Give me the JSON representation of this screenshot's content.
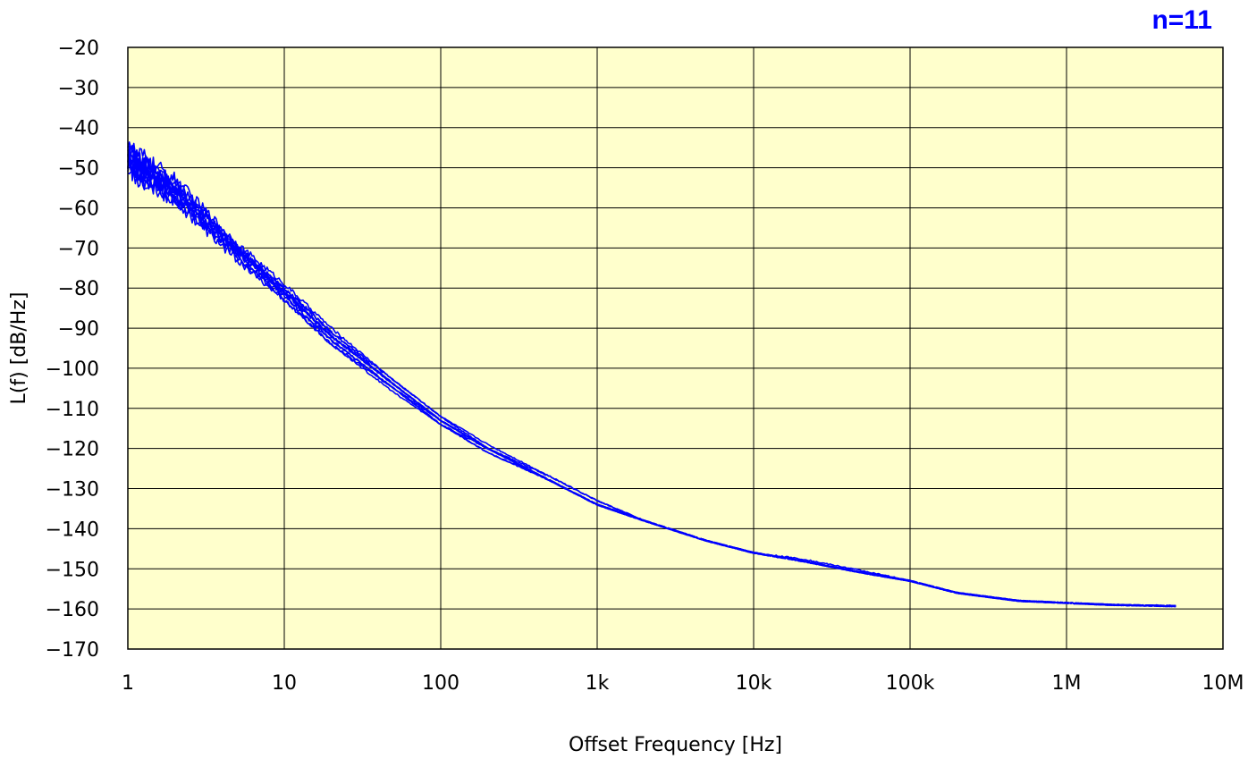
{
  "chart_data": {
    "type": "line",
    "annotation": "n=11",
    "xlabel": "Offset Frequency [Hz]",
    "ylabel": "L(f) [dB/Hz]",
    "x_scale": "log",
    "xlim": [
      1,
      10000000
    ],
    "ylim": [
      -170,
      -20
    ],
    "x_ticks": [
      {
        "value": 1,
        "label": "1"
      },
      {
        "value": 10,
        "label": "10"
      },
      {
        "value": 100,
        "label": "100"
      },
      {
        "value": 1000,
        "label": "1k"
      },
      {
        "value": 10000,
        "label": "10k"
      },
      {
        "value": 100000,
        "label": "100k"
      },
      {
        "value": 1000000,
        "label": "1M"
      },
      {
        "value": 10000000,
        "label": "10M"
      }
    ],
    "y_ticks": [
      -20,
      -30,
      -40,
      -50,
      -60,
      -70,
      -80,
      -90,
      -100,
      -110,
      -120,
      -130,
      -140,
      -150,
      -160,
      -170
    ],
    "grid": true,
    "series_count": 11,
    "series_color": "#0000ff",
    "plot_background": "#ffffcc",
    "x": [
      1,
      2,
      3,
      5,
      10,
      20,
      50,
      100,
      200,
      500,
      1000,
      2000,
      5000,
      10000,
      20000,
      50000,
      100000,
      200000,
      500000,
      1000000,
      2000000,
      5000000
    ],
    "series": [
      {
        "values": [
          -47,
          -55,
          -62,
          -70,
          -81,
          -92,
          -104,
          -113,
          -120,
          -128,
          -134,
          -138,
          -143,
          -146,
          -148,
          -151,
          -153,
          -156,
          -158,
          -158.5,
          -159,
          -159.3
        ]
      },
      {
        "values": [
          -45,
          -53,
          -60,
          -69,
          -79,
          -90,
          -103,
          -112,
          -119,
          -127,
          -133,
          -138,
          -143,
          -146,
          -147.5,
          -150.5,
          -153,
          -156,
          -158,
          -158.5,
          -159,
          -159.2
        ]
      },
      {
        "values": [
          -49,
          -57,
          -63,
          -71,
          -82,
          -93,
          -105,
          -114,
          -120,
          -128,
          -134,
          -138,
          -143,
          -146,
          -148,
          -151,
          -153,
          -156,
          -158,
          -158.5,
          -159,
          -159.3
        ]
      },
      {
        "values": [
          -46,
          -54,
          -61,
          -70,
          -80,
          -91,
          -104,
          -113,
          -120,
          -128,
          -134,
          -138,
          -143,
          -146,
          -148,
          -151,
          -153,
          -156,
          -158,
          -158.5,
          -159,
          -159.3
        ]
      },
      {
        "values": [
          -50,
          -58,
          -64,
          -72,
          -83,
          -94,
          -105,
          -114,
          -121,
          -128,
          -134,
          -138,
          -143,
          -146,
          -148,
          -151,
          -153,
          -156,
          -158,
          -158.5,
          -159,
          -159.3
        ]
      },
      {
        "values": [
          -48,
          -56,
          -62,
          -71,
          -81,
          -92,
          -104,
          -113,
          -120,
          -128,
          -134,
          -138,
          -143,
          -146,
          -148,
          -151,
          -153,
          -156,
          -158,
          -158.5,
          -159,
          -159.3
        ]
      },
      {
        "values": [
          -47,
          -54,
          -61,
          -70,
          -80,
          -91,
          -103,
          -112,
          -120,
          -127,
          -133,
          -138,
          -143,
          -146,
          -148,
          -151,
          -153,
          -156,
          -158,
          -158.5,
          -159,
          -159.3
        ]
      },
      {
        "values": [
          -51,
          -58,
          -65,
          -73,
          -83,
          -94,
          -106,
          -114,
          -121,
          -128,
          -134,
          -138,
          -143,
          -146,
          -148,
          -151,
          -153,
          -156,
          -158,
          -158.5,
          -159,
          -159.3
        ]
      },
      {
        "values": [
          -46,
          -55,
          -62,
          -70,
          -81,
          -92,
          -104,
          -113,
          -120,
          -128,
          -134,
          -138,
          -143,
          -146,
          -148,
          -151,
          -153,
          -156,
          -158,
          -158.5,
          -159,
          -159.3
        ]
      },
      {
        "values": [
          -49,
          -56,
          -63,
          -72,
          -82,
          -93,
          -105,
          -113,
          -120,
          -128,
          -134,
          -138,
          -143,
          -146,
          -148,
          -151,
          -153,
          -156,
          -158,
          -158.5,
          -159,
          -159.3
        ]
      },
      {
        "values": [
          -48,
          -57,
          -64,
          -71,
          -81,
          -92,
          -104,
          -113,
          -120,
          -128,
          -134,
          -138,
          -143,
          -146,
          -148,
          -151,
          -153,
          -156,
          -158,
          -158.5,
          -159,
          -159.3
        ]
      }
    ]
  }
}
